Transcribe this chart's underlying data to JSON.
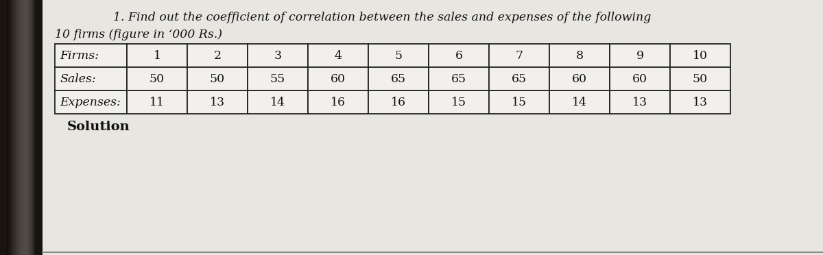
{
  "title_line1": "1. Find out the coefficient of correlation between the sales and expenses of the following",
  "title_line2": "10 firms (figure in ‘000 Rs.)",
  "header_row": [
    "Firms:",
    "1",
    "2",
    "3",
    "4",
    "5",
    "6",
    "7",
    "8",
    "9",
    "10"
  ],
  "sales_row": [
    "Sales:",
    "50",
    "50",
    "55",
    "60",
    "65",
    "65",
    "65",
    "60",
    "60",
    "50"
  ],
  "expenses_row": [
    "Expenses:",
    "11",
    "13",
    "14",
    "16",
    "16",
    "15",
    "15",
    "14",
    "13",
    "13"
  ],
  "solution_label": "Solution",
  "paper_color": "#e8e6e0",
  "table_bg": "#ebebeb",
  "text_color": "#111111",
  "border_color": "#222222",
  "shadow_color": "#3a2e26",
  "title_fontsize": 12.5,
  "table_fontsize": 12.5,
  "solution_fontsize": 14,
  "fig_bg": "#c8c2b8"
}
